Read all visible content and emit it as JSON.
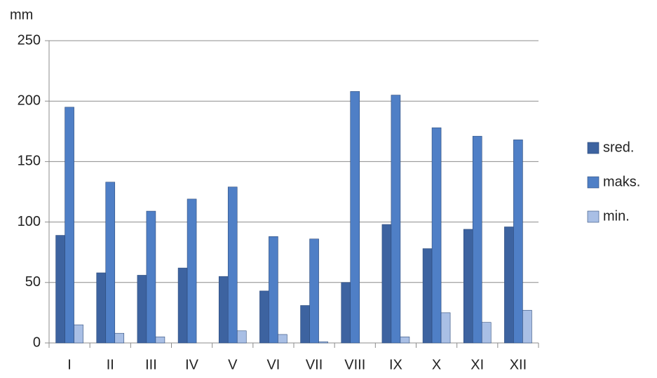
{
  "chart_data": {
    "type": "bar",
    "y_label": "mm",
    "categories": [
      "I",
      "II",
      "III",
      "IV",
      "V",
      "VI",
      "VII",
      "VIII",
      "IX",
      "X",
      "XI",
      "XII"
    ],
    "series": [
      {
        "name": "sred.",
        "color": "#3d63a0",
        "values": [
          89,
          58,
          56,
          62,
          55,
          43,
          31,
          50,
          98,
          78,
          94,
          96
        ]
      },
      {
        "name": "maks.",
        "color": "#4f7fc6",
        "values": [
          195,
          133,
          109,
          119,
          129,
          88,
          86,
          208,
          205,
          178,
          171,
          168
        ]
      },
      {
        "name": "min.",
        "color": "#a9bfe5",
        "values": [
          15,
          8,
          5,
          0,
          10,
          7,
          1,
          0,
          5,
          25,
          17,
          27
        ]
      }
    ],
    "ylim": [
      0,
      250
    ],
    "yticks": [
      0,
      50,
      100,
      150,
      200,
      250
    ],
    "grid": true,
    "legend": "right"
  }
}
